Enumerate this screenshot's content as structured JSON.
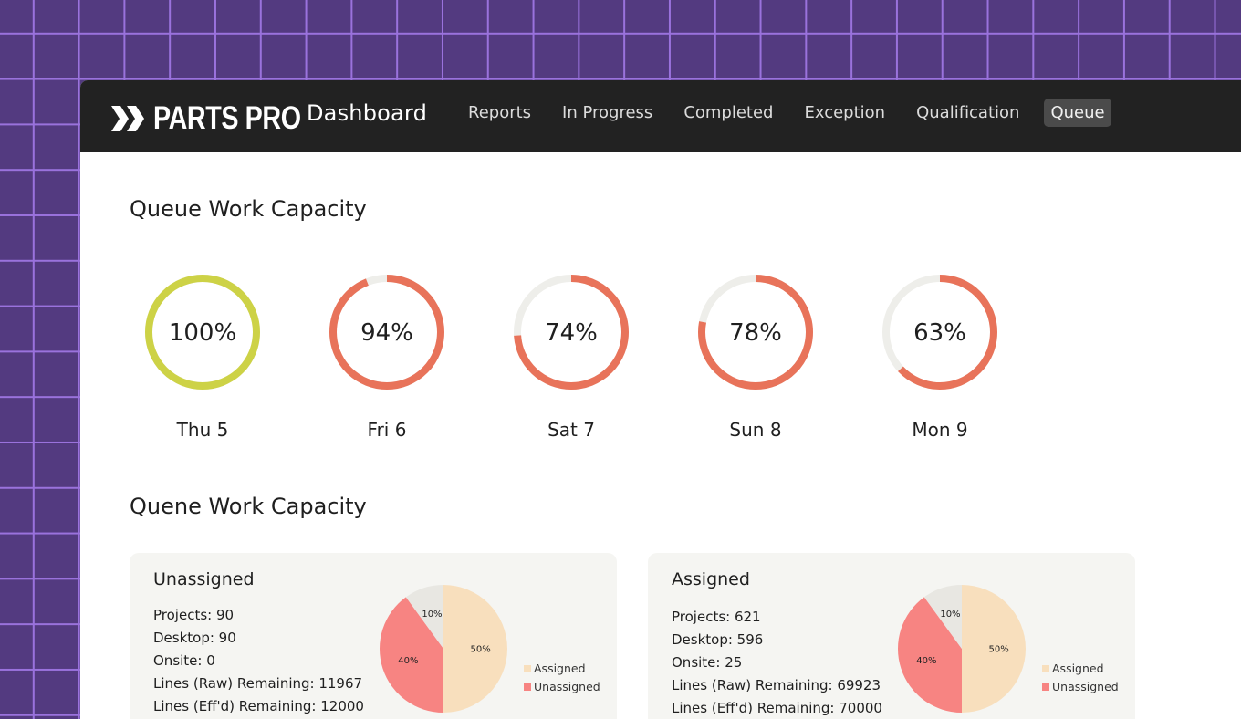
{
  "app": {
    "brand": "PARTS PRO",
    "title": "Dashboard",
    "nav": [
      "Reports",
      "In Progress",
      "Completed",
      "Exception",
      "Qualification",
      "Queue"
    ],
    "active_nav": "Queue"
  },
  "capacity": {
    "title": "Queue Work Capacity",
    "days": [
      {
        "label": "Thu 5",
        "value": "100%",
        "percent": 100,
        "color": "#cdd246"
      },
      {
        "label": "Fri 6",
        "value": "94%",
        "percent": 94,
        "color": "#e8735a"
      },
      {
        "label": "Sat 7",
        "value": "74%",
        "percent": 74,
        "color": "#e8735a"
      },
      {
        "label": "Sun 8",
        "value": "78%",
        "percent": 78,
        "color": "#e8735a"
      },
      {
        "label": "Mon 9",
        "value": "63%",
        "percent": 63,
        "color": "#e8735a"
      }
    ],
    "track_color": "#eeeeea"
  },
  "breakdown": {
    "title": "Quene Work Capacity",
    "cards": [
      {
        "title": "Unassigned",
        "stats": [
          "Projects: 90",
          "Desktop: 90",
          "Onsite: 0",
          "Lines (Raw) Remaining: 11967",
          "Lines (Eff'd) Remaining: 12000"
        ],
        "pie": [
          {
            "label": "50%",
            "value": 50,
            "color": "#f8dfbd"
          },
          {
            "label": "40%",
            "value": 40,
            "color": "#f78482"
          },
          {
            "label": "10%",
            "value": 10,
            "color": "#e8e7e2"
          }
        ],
        "legend": [
          {
            "label": "Assigned",
            "color": "#f8dfbd"
          },
          {
            "label": "Unassigned",
            "color": "#f78482"
          }
        ]
      },
      {
        "title": "Assigned",
        "stats": [
          "Projects: 621",
          "Desktop: 596",
          "Onsite: 25",
          "Lines (Raw) Remaining: 69923",
          "Lines (Eff'd) Remaining: 70000"
        ],
        "pie": [
          {
            "label": "50%",
            "value": 50,
            "color": "#f8dfbd"
          },
          {
            "label": "40%",
            "value": 40,
            "color": "#f78482"
          },
          {
            "label": "10%",
            "value": 10,
            "color": "#e8e7e2"
          }
        ],
        "legend": [
          {
            "label": "Assigned",
            "color": "#f8dfbd"
          },
          {
            "label": "Unassigned",
            "color": "#f78482"
          }
        ]
      }
    ]
  }
}
